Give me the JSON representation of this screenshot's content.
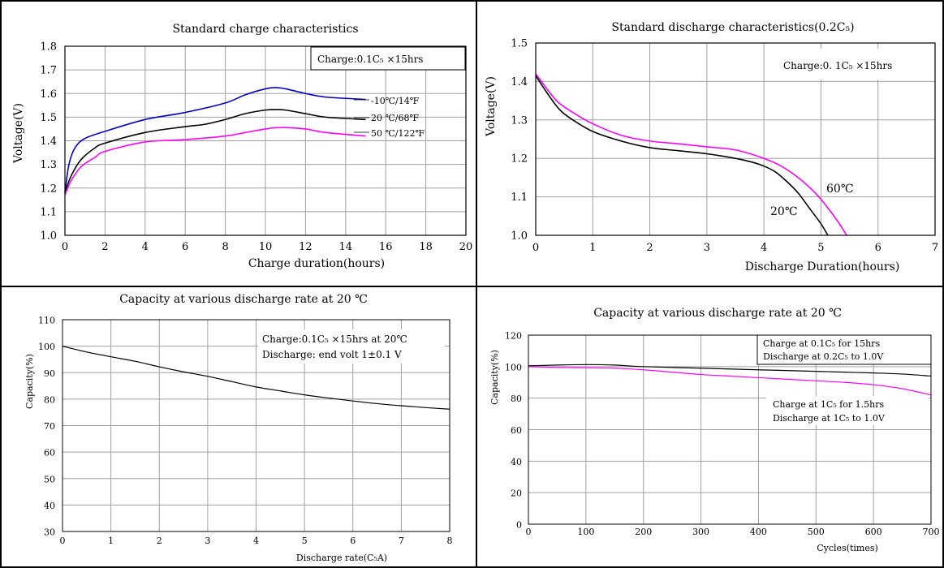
{
  "colors": {
    "blue": "#0000cc",
    "black": "#000000",
    "magenta": "#ff00ff",
    "grid": "#a0a0a0"
  },
  "chart_data": [
    {
      "type": "line",
      "title": "Standard charge characteristics",
      "xlabel": "Charge duration(hours)",
      "ylabel": "Voltage(V)",
      "xlim": [
        0,
        20
      ],
      "ylim": [
        1.0,
        1.8
      ],
      "xticks": [
        "0",
        "2",
        "4",
        "6",
        "8",
        "10",
        "12",
        "14",
        "16",
        "18",
        "20"
      ],
      "yticks": [
        "1.0",
        "1.1",
        "1.2",
        "1.3",
        "1.4",
        "1.5",
        "1.6",
        "1.7",
        "1.8"
      ],
      "grid": true,
      "annotations": [
        "Charge:0.1C₅ ×15hrs"
      ],
      "series": [
        {
          "name": "-10℃/14℉",
          "color": "blue",
          "x": [
            0,
            0.2,
            0.5,
            1,
            2,
            4,
            6,
            8,
            9,
            10,
            10.5,
            11,
            12,
            13,
            15
          ],
          "y": [
            1.18,
            1.3,
            1.37,
            1.41,
            1.44,
            1.49,
            1.52,
            1.56,
            1.595,
            1.62,
            1.625,
            1.62,
            1.6,
            1.585,
            1.575
          ]
        },
        {
          "name": "20 ℃/68℉",
          "color": "black",
          "x": [
            0,
            0.3,
            0.8,
            1.5,
            2,
            4,
            6,
            7,
            8,
            9,
            10,
            10.5,
            11,
            12,
            13,
            15
          ],
          "y": [
            1.18,
            1.25,
            1.32,
            1.37,
            1.39,
            1.435,
            1.46,
            1.47,
            1.49,
            1.515,
            1.53,
            1.532,
            1.53,
            1.515,
            1.5,
            1.49
          ]
        },
        {
          "name": "50 ℃/122℉",
          "color": "magenta",
          "x": [
            0,
            0.3,
            0.8,
            1.5,
            2,
            4,
            6,
            8,
            9,
            10,
            10.5,
            11,
            12,
            13,
            15
          ],
          "y": [
            1.17,
            1.23,
            1.29,
            1.33,
            1.355,
            1.395,
            1.405,
            1.42,
            1.435,
            1.45,
            1.455,
            1.456,
            1.45,
            1.435,
            1.42
          ]
        }
      ]
    },
    {
      "type": "line",
      "title": "Standard discharge characteristics(0.2C₅)",
      "xlabel": "Discharge Duration(hours)",
      "ylabel": "Voltage(V)",
      "xlim": [
        0,
        7
      ],
      "ylim": [
        1.0,
        1.5
      ],
      "xticks": [
        "0",
        "1",
        "2",
        "3",
        "4",
        "5",
        "6",
        "7"
      ],
      "yticks": [
        "1.0",
        "1.1",
        "1.2",
        "1.3",
        "1.4",
        "1.5"
      ],
      "grid": true,
      "annotations": [
        "Charge:0. 1C₅ ×15hrs"
      ],
      "series": [
        {
          "name": "20℃",
          "color": "black",
          "x": [
            0,
            0.2,
            0.4,
            0.6,
            1,
            1.5,
            2,
            2.5,
            3,
            3.5,
            3.8,
            4.0,
            4.2,
            4.4,
            4.6,
            4.8,
            5.0,
            5.12
          ],
          "y": [
            1.415,
            1.37,
            1.33,
            1.305,
            1.27,
            1.245,
            1.228,
            1.22,
            1.212,
            1.2,
            1.19,
            1.18,
            1.165,
            1.14,
            1.11,
            1.07,
            1.03,
            1.0
          ]
        },
        {
          "name": "60℃",
          "color": "magenta",
          "x": [
            0,
            0.2,
            0.4,
            0.7,
            1,
            1.5,
            2,
            2.5,
            3,
            3.5,
            4.0,
            4.3,
            4.6,
            4.9,
            5.1,
            5.3,
            5.45
          ],
          "y": [
            1.42,
            1.38,
            1.345,
            1.315,
            1.29,
            1.26,
            1.245,
            1.238,
            1.23,
            1.222,
            1.2,
            1.18,
            1.15,
            1.11,
            1.075,
            1.035,
            1.0
          ]
        }
      ]
    },
    {
      "type": "line",
      "title": "Capacity at various discharge rate at 20 ℃",
      "xlabel": "Discharge rate(C₅A)",
      "ylabel": "Capacity(%)",
      "xlim": [
        0,
        8
      ],
      "ylim": [
        30,
        110
      ],
      "xticks": [
        "0",
        "1",
        "2",
        "3",
        "4",
        "5",
        "6",
        "7",
        "8"
      ],
      "yticks": [
        "30",
        "40",
        "50",
        "60",
        "70",
        "80",
        "90",
        "100",
        "110"
      ],
      "grid": true,
      "annotations": [
        "Charge:0.1C₅ ×15hrs at 20℃",
        "Discharge: end volt 1±0.1 V"
      ],
      "series": [
        {
          "name": "",
          "color": "black",
          "x": [
            0,
            0.5,
            1,
            1.5,
            2,
            2.5,
            3,
            3.5,
            4,
            4.5,
            5,
            5.5,
            6,
            6.5,
            7,
            7.5,
            8
          ],
          "y": [
            100,
            97.8,
            96,
            94.3,
            92.2,
            90.3,
            88.6,
            86.6,
            84.6,
            83.1,
            81.6,
            80.4,
            79.3,
            78.3,
            77.5,
            76.8,
            76.2
          ]
        }
      ]
    },
    {
      "type": "line",
      "title": "Capacity at various discharge rate at 20 ℃",
      "xlabel": "Cycles(times)",
      "ylabel": "Capacity(%)",
      "xlim": [
        0,
        700
      ],
      "ylim": [
        0,
        120
      ],
      "xticks": [
        "0",
        "100",
        "200",
        "300",
        "400",
        "500",
        "600",
        "700"
      ],
      "yticks": [
        "0",
        "20",
        "40",
        "60",
        "80",
        "100",
        "120"
      ],
      "grid": true,
      "annotations": [
        "Charge at 0.1C₅ for 15hrs",
        "Discharge at 0.2C₅ to 1.0V",
        "Charge at 1C₅ for 1.5hrs",
        "Discharge at 1C₅ to 1.0V"
      ],
      "series": [
        {
          "name": "",
          "color": "black",
          "x": [
            0,
            50,
            100,
            150,
            200,
            300,
            400,
            500,
            550,
            600,
            650,
            700
          ],
          "y": [
            100.5,
            101,
            101.3,
            101,
            100,
            99,
            98,
            97,
            96.5,
            96,
            95.3,
            94
          ]
        },
        {
          "name": "",
          "color": "magenta",
          "x": [
            0,
            50,
            100,
            150,
            200,
            250,
            300,
            350,
            400,
            450,
            500,
            550,
            600,
            650,
            700
          ],
          "y": [
            100,
            99.5,
            99.3,
            99,
            98,
            96.5,
            95,
            94,
            93,
            92,
            91,
            90,
            88.5,
            86,
            82
          ]
        }
      ]
    }
  ]
}
